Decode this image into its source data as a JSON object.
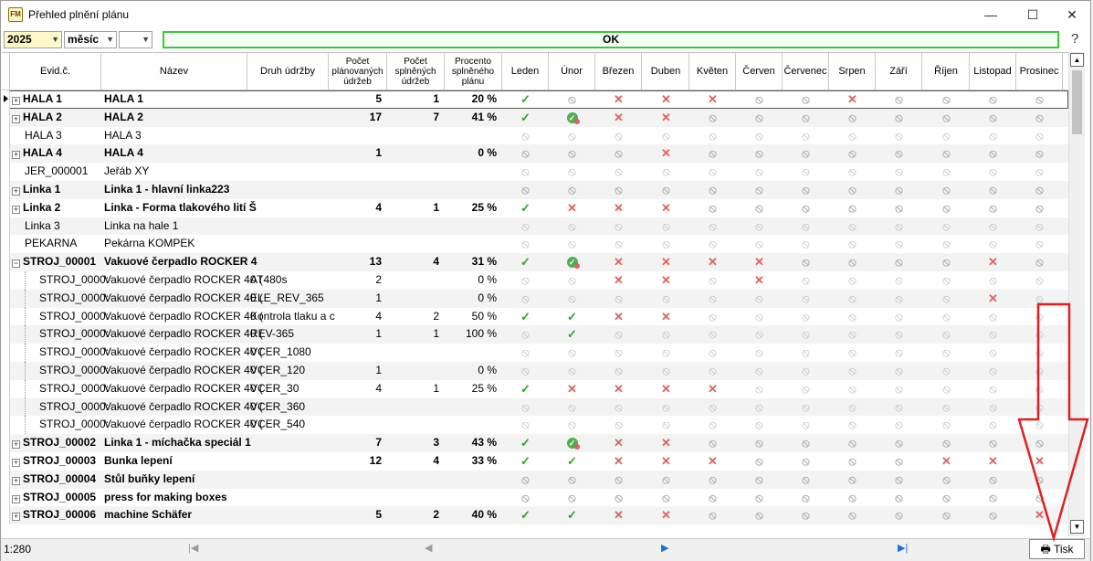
{
  "window": {
    "title": "Přehled plnění plánu",
    "minimize": "—",
    "maximize": "☐",
    "close": "✕"
  },
  "toolbar": {
    "year": "2025",
    "period": "měsíc",
    "blank": "",
    "status": "OK",
    "help": "?"
  },
  "columns": {
    "evid": "Evid.č.",
    "nazev": "Název",
    "druh": "Druh údržby",
    "planned": "Počet plánovaných údržeb",
    "done": "Počet splněných údržeb",
    "pct": "Procento splněného plánu",
    "months": [
      "Leden",
      "Únor",
      "Březen",
      "Duben",
      "Květen",
      "Červen",
      "Červenec",
      "Srpen",
      "Září",
      "Říjen",
      "Listopad",
      "Prosinec"
    ]
  },
  "legend_symbols": {
    "ok": "✓",
    "bad": "✕",
    "na": "⃠",
    "part": "✓"
  },
  "rows": [
    {
      "level": 0,
      "expand": "+",
      "bold": true,
      "evid": "HALA 1",
      "nazev": "HALA 1",
      "druh": "",
      "planned": "5",
      "done": "1",
      "pct": "20 %",
      "m": [
        "ok",
        "na",
        "bad",
        "bad",
        "bad",
        "na",
        "na",
        "bad",
        "na",
        "na",
        "na",
        "na"
      ]
    },
    {
      "level": 0,
      "expand": "+",
      "bold": true,
      "evid": "HALA 2",
      "nazev": "HALA 2",
      "druh": "",
      "planned": "17",
      "done": "7",
      "pct": "41 %",
      "m": [
        "ok",
        "part",
        "bad",
        "bad",
        "na",
        "na",
        "na",
        "na",
        "na",
        "na",
        "na",
        "na"
      ]
    },
    {
      "level": 0,
      "expand": "",
      "bold": false,
      "evid": "HALA 3",
      "nazev": "HALA 3",
      "druh": "",
      "planned": "",
      "done": "",
      "pct": "",
      "m": [
        "na",
        "na",
        "na",
        "na",
        "na",
        "na",
        "na",
        "na",
        "na",
        "na",
        "na",
        "na"
      ]
    },
    {
      "level": 0,
      "expand": "+",
      "bold": true,
      "evid": "HALA 4",
      "nazev": "HALA 4",
      "druh": "",
      "planned": "1",
      "done": "",
      "pct": "0 %",
      "m": [
        "na",
        "na",
        "na",
        "bad",
        "na",
        "na",
        "na",
        "na",
        "na",
        "na",
        "na",
        "na"
      ]
    },
    {
      "level": 0,
      "expand": "",
      "bold": false,
      "evid": "JER_000001",
      "nazev": "Jeřáb XY",
      "druh": "",
      "planned": "",
      "done": "",
      "pct": "",
      "m": [
        "na",
        "na",
        "na",
        "na",
        "na",
        "na",
        "na",
        "na",
        "na",
        "na",
        "na",
        "na"
      ]
    },
    {
      "level": 0,
      "expand": "+",
      "bold": true,
      "evid": "Linka 1",
      "nazev": "Linka 1 - hlavní linka223",
      "druh": "",
      "planned": "",
      "done": "",
      "pct": "",
      "m": [
        "na",
        "na",
        "na",
        "na",
        "na",
        "na",
        "na",
        "na",
        "na",
        "na",
        "na",
        "na"
      ]
    },
    {
      "level": 0,
      "expand": "+",
      "bold": true,
      "evid": "Linka 2",
      "nazev": "Linka - Forma tlakového lití Š",
      "druh": "",
      "planned": "4",
      "done": "1",
      "pct": "25 %",
      "m": [
        "ok",
        "bad",
        "bad",
        "bad",
        "na",
        "na",
        "na",
        "na",
        "na",
        "na",
        "na",
        "na"
      ]
    },
    {
      "level": 0,
      "expand": "",
      "bold": false,
      "evid": "Linka 3",
      "nazev": "Linka na hale 1",
      "druh": "",
      "planned": "",
      "done": "",
      "pct": "",
      "m": [
        "na",
        "na",
        "na",
        "na",
        "na",
        "na",
        "na",
        "na",
        "na",
        "na",
        "na",
        "na"
      ]
    },
    {
      "level": 0,
      "expand": "",
      "bold": false,
      "evid": "PEKARNA",
      "nazev": "Pekárna KOMPEK",
      "druh": "",
      "planned": "",
      "done": "",
      "pct": "",
      "m": [
        "na",
        "na",
        "na",
        "na",
        "na",
        "na",
        "na",
        "na",
        "na",
        "na",
        "na",
        "na"
      ]
    },
    {
      "level": 0,
      "expand": "−",
      "bold": true,
      "evid": "STROJ_00001",
      "nazev": "Vakuové čerpadlo ROCKER 4",
      "druh": "",
      "planned": "13",
      "done": "4",
      "pct": "31 %",
      "m": [
        "ok",
        "part",
        "bad",
        "bad",
        "bad",
        "bad",
        "na",
        "na",
        "na",
        "na",
        "bad",
        "na"
      ]
    },
    {
      "level": 1,
      "expand": "",
      "bold": false,
      "evid": "STROJ_0000:",
      "nazev": "Vakuové čerpadlo ROCKER 40 (",
      "druh": "AT480s",
      "planned": "2",
      "done": "",
      "pct": "0 %",
      "m": [
        "na",
        "na",
        "bad",
        "bad",
        "na",
        "bad",
        "na",
        "na",
        "na",
        "na",
        "na",
        "na"
      ]
    },
    {
      "level": 1,
      "expand": "",
      "bold": false,
      "evid": "STROJ_0000:",
      "nazev": "Vakuové čerpadlo ROCKER 40 (",
      "druh": "ELE_REV_365",
      "planned": "1",
      "done": "",
      "pct": "0 %",
      "m": [
        "na",
        "na",
        "na",
        "na",
        "na",
        "na",
        "na",
        "na",
        "na",
        "na",
        "bad",
        "na"
      ]
    },
    {
      "level": 1,
      "expand": "",
      "bold": false,
      "evid": "STROJ_0000:",
      "nazev": "Vakuové čerpadlo ROCKER 40 (",
      "druh": "Kontrola tlaku a c",
      "planned": "4",
      "done": "2",
      "pct": "50 %",
      "m": [
        "ok",
        "ok",
        "bad",
        "bad",
        "na",
        "na",
        "na",
        "na",
        "na",
        "na",
        "na",
        "na"
      ]
    },
    {
      "level": 1,
      "expand": "",
      "bold": false,
      "evid": "STROJ_0000:",
      "nazev": "Vakuové čerpadlo ROCKER 40 (",
      "druh": "REV-365",
      "planned": "1",
      "done": "1",
      "pct": "100 %",
      "m": [
        "na",
        "ok",
        "na",
        "na",
        "na",
        "na",
        "na",
        "na",
        "na",
        "na",
        "na",
        "na"
      ]
    },
    {
      "level": 1,
      "expand": "",
      "bold": false,
      "evid": "STROJ_0000:",
      "nazev": "Vakuové čerpadlo ROCKER 40 (",
      "druh": "VCER_1080",
      "planned": "",
      "done": "",
      "pct": "",
      "m": [
        "na",
        "na",
        "na",
        "na",
        "na",
        "na",
        "na",
        "na",
        "na",
        "na",
        "na",
        "na"
      ]
    },
    {
      "level": 1,
      "expand": "",
      "bold": false,
      "evid": "STROJ_0000:",
      "nazev": "Vakuové čerpadlo ROCKER 40 (",
      "druh": "VCER_120",
      "planned": "1",
      "done": "",
      "pct": "0 %",
      "m": [
        "na",
        "na",
        "na",
        "na",
        "na",
        "na",
        "na",
        "na",
        "na",
        "na",
        "na",
        "na"
      ]
    },
    {
      "level": 1,
      "expand": "",
      "bold": false,
      "evid": "STROJ_0000:",
      "nazev": "Vakuové čerpadlo ROCKER 40 (",
      "druh": "VCER_30",
      "planned": "4",
      "done": "1",
      "pct": "25 %",
      "m": [
        "ok",
        "bad",
        "bad",
        "bad",
        "bad",
        "na",
        "na",
        "na",
        "na",
        "na",
        "na",
        "na"
      ]
    },
    {
      "level": 1,
      "expand": "",
      "bold": false,
      "evid": "STROJ_0000:",
      "nazev": "Vakuové čerpadlo ROCKER 40 (",
      "druh": "VCER_360",
      "planned": "",
      "done": "",
      "pct": "",
      "m": [
        "na",
        "na",
        "na",
        "na",
        "na",
        "na",
        "na",
        "na",
        "na",
        "na",
        "na",
        "na"
      ]
    },
    {
      "level": 1,
      "expand": "",
      "bold": false,
      "evid": "STROJ_0000:",
      "nazev": "Vakuové čerpadlo ROCKER 40 (",
      "druh": "VCER_540",
      "planned": "",
      "done": "",
      "pct": "",
      "m": [
        "na",
        "na",
        "na",
        "na",
        "na",
        "na",
        "na",
        "na",
        "na",
        "na",
        "na",
        "na"
      ]
    },
    {
      "level": 0,
      "expand": "+",
      "bold": true,
      "evid": "STROJ_00002",
      "nazev": "Linka 1 - míchačka speciál 1",
      "druh": "",
      "planned": "7",
      "done": "3",
      "pct": "43 %",
      "m": [
        "ok",
        "part",
        "bad",
        "bad",
        "na",
        "na",
        "na",
        "na",
        "na",
        "na",
        "na",
        "na"
      ]
    },
    {
      "level": 0,
      "expand": "+",
      "bold": true,
      "evid": "STROJ_00003",
      "nazev": "Bunka lepení",
      "druh": "",
      "planned": "12",
      "done": "4",
      "pct": "33 %",
      "m": [
        "ok",
        "ok",
        "bad",
        "bad",
        "bad",
        "na",
        "na",
        "na",
        "na",
        "bad",
        "bad",
        "bad"
      ]
    },
    {
      "level": 0,
      "expand": "+",
      "bold": true,
      "evid": "STROJ_00004",
      "nazev": "Stůl buňky lepení",
      "druh": "",
      "planned": "",
      "done": "",
      "pct": "",
      "m": [
        "na",
        "na",
        "na",
        "na",
        "na",
        "na",
        "na",
        "na",
        "na",
        "na",
        "na",
        "na"
      ]
    },
    {
      "level": 0,
      "expand": "+",
      "bold": true,
      "evid": "STROJ_00005",
      "nazev": "press for making boxes",
      "druh": "",
      "planned": "",
      "done": "",
      "pct": "",
      "m": [
        "na",
        "na",
        "na",
        "na",
        "na",
        "na",
        "na",
        "na",
        "na",
        "na",
        "na",
        "na"
      ]
    },
    {
      "level": 0,
      "expand": "+",
      "bold": true,
      "evid": "STROJ_00006",
      "nazev": "machine Schäfer",
      "druh": "",
      "planned": "5",
      "done": "2",
      "pct": "40 %",
      "m": [
        "ok",
        "ok",
        "bad",
        "bad",
        "na",
        "na",
        "na",
        "na",
        "na",
        "na",
        "na",
        "bad"
      ]
    }
  ],
  "status": {
    "row_count": "1:280",
    "first": "|◀",
    "prev": "◀",
    "next": "▶",
    "last": "▶|",
    "print": "Tisk"
  },
  "colors": {
    "ok_border": "#3ec63e",
    "check": "#2aa52a",
    "cross": "#e06060",
    "annotation": "#e02020",
    "nav_active": "#1f6fd8"
  }
}
